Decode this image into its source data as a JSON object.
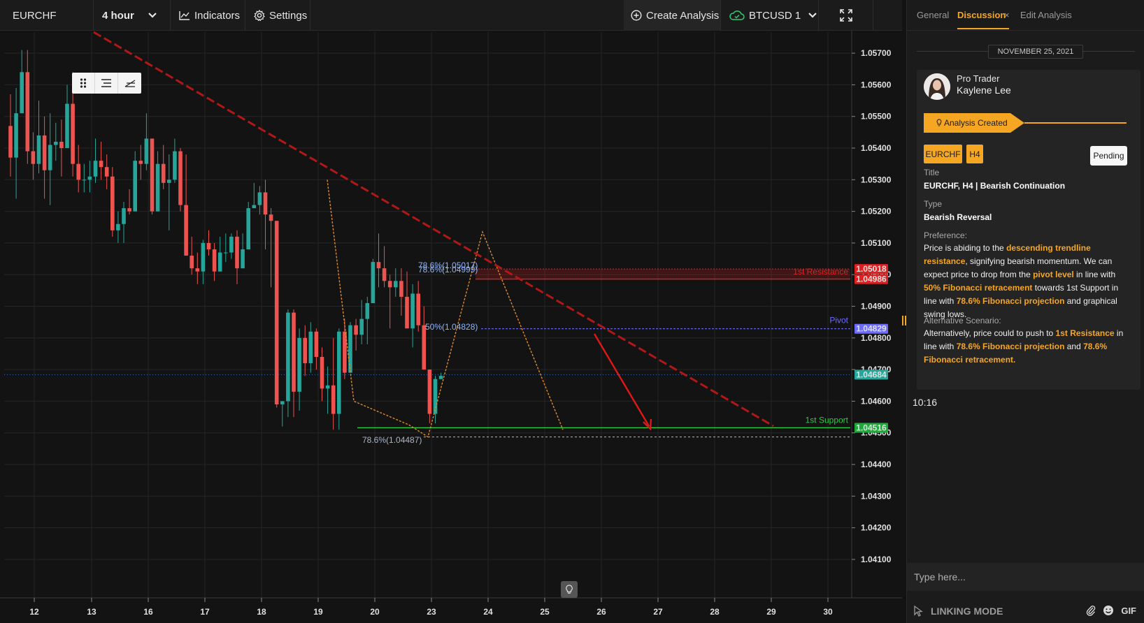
{
  "toolbar": {
    "symbol": "EURCHF",
    "interval": "4 hour",
    "indicators_label": "Indicators",
    "settings_label": "Settings",
    "create_analysis_label": "Create Analysis",
    "second_symbol": "BTCUSD 1",
    "icons": [
      "chevron-down-icon",
      "line-chart-icon",
      "gear-icon",
      "plus-circle-icon",
      "cloud-icon",
      "fullscreen-icon"
    ]
  },
  "chart_data": {
    "type": "candlestick",
    "symbol": "EURCHF",
    "interval": "4 hour",
    "y_ticks": [
      "1.05700",
      "1.05600",
      "1.05500",
      "1.05400",
      "1.05300",
      "1.05200",
      "1.05100",
      "1.05000",
      "1.04900",
      "1.04800",
      "1.04700",
      "1.04600",
      "1.04500",
      "1.04400",
      "1.04300",
      "1.04200",
      "1.04100"
    ],
    "ylim": [
      1.0408,
      1.0574
    ],
    "x_ticks": [
      "12",
      "13",
      "16",
      "17",
      "18",
      "19",
      "20",
      "23",
      "24",
      "25",
      "26",
      "27",
      "28",
      "29",
      "30"
    ],
    "grid": true,
    "candles": [
      [
        1.0547,
        1.0557,
        1.0531,
        1.0537
      ],
      [
        1.0537,
        1.0559,
        1.0524,
        1.0551
      ],
      [
        1.0551,
        1.0571,
        1.0551,
        1.0564
      ],
      [
        1.0564,
        1.0571,
        1.0535,
        1.0539
      ],
      [
        1.0539,
        1.0545,
        1.053,
        1.0535
      ],
      [
        1.0535,
        1.0555,
        1.0532,
        1.0544
      ],
      [
        1.0544,
        1.055,
        1.0524,
        1.0533
      ],
      [
        1.0533,
        1.0551,
        1.0522,
        1.0541
      ],
      [
        1.0541,
        1.0548,
        1.0536,
        1.0542
      ],
      [
        1.0542,
        1.0549,
        1.0531,
        1.054
      ],
      [
        1.054,
        1.056,
        1.054,
        1.0554
      ],
      [
        1.0554,
        1.0564,
        1.0531,
        1.0535
      ],
      [
        1.0535,
        1.0541,
        1.0526,
        1.053
      ],
      [
        1.053,
        1.0535,
        1.0526,
        1.053
      ],
      [
        1.053,
        1.0536,
        1.0526,
        1.0531
      ],
      [
        1.0531,
        1.0543,
        1.0529,
        1.0536
      ],
      [
        1.0536,
        1.0542,
        1.053,
        1.0534
      ],
      [
        1.0534,
        1.0538,
        1.0527,
        1.0531
      ],
      [
        1.0531,
        1.0534,
        1.0512,
        1.0514
      ],
      [
        1.0514,
        1.052,
        1.051,
        1.0516
      ],
      [
        1.0516,
        1.0523,
        1.051,
        1.0521
      ],
      [
        1.0521,
        1.0527,
        1.0519,
        1.052
      ],
      [
        1.052,
        1.0539,
        1.052,
        1.0536
      ],
      [
        1.0536,
        1.0541,
        1.053,
        1.0535
      ],
      [
        1.0535,
        1.0551,
        1.0533,
        1.0543
      ],
      [
        1.0543,
        1.0543,
        1.0519,
        1.052
      ],
      [
        1.052,
        1.0539,
        1.052,
        1.0535
      ],
      [
        1.0535,
        1.0541,
        1.0527,
        1.0529
      ],
      [
        1.0529,
        1.0538,
        1.0514,
        1.053
      ],
      [
        1.053,
        1.0543,
        1.0529,
        1.0539
      ],
      [
        1.0539,
        1.054,
        1.052,
        1.0522
      ],
      [
        1.0522,
        1.0538,
        1.0506,
        1.0506
      ],
      [
        1.0506,
        1.0512,
        1.05,
        1.0502
      ],
      [
        1.0502,
        1.0507,
        1.0497,
        1.0501
      ],
      [
        1.0501,
        1.0511,
        1.0497,
        1.051
      ],
      [
        1.051,
        1.0514,
        1.0506,
        1.0508
      ],
      [
        1.0508,
        1.051,
        1.0498,
        1.0501
      ],
      [
        1.0501,
        1.0512,
        1.0501,
        1.0507
      ],
      [
        1.0507,
        1.0513,
        1.0504,
        1.0507
      ],
      [
        1.0507,
        1.0513,
        1.0505,
        1.0512
      ],
      [
        1.0512,
        1.0514,
        1.0497,
        1.0502
      ],
      [
        1.0502,
        1.0513,
        1.0502,
        1.0508
      ],
      [
        1.0508,
        1.0523,
        1.0508,
        1.0521
      ],
      [
        1.0521,
        1.0529,
        1.0521,
        1.0522
      ],
      [
        1.0522,
        1.0528,
        1.0519,
        1.0526
      ],
      [
        1.0526,
        1.053,
        1.0508,
        1.0519
      ],
      [
        1.0519,
        1.0521,
        1.0496,
        1.0517
      ],
      [
        1.0517,
        1.0517,
        1.0458,
        1.0459
      ],
      [
        1.0459,
        1.046,
        1.0452,
        1.046
      ],
      [
        1.046,
        1.0489,
        1.0455,
        1.0488
      ],
      [
        1.0488,
        1.0489,
        1.0455,
        1.0463
      ],
      [
        1.0463,
        1.0483,
        1.0457,
        1.048
      ],
      [
        1.048,
        1.0484,
        1.0468,
        1.0472
      ],
      [
        1.0472,
        1.0485,
        1.0469,
        1.0482
      ],
      [
        1.0482,
        1.0483,
        1.047,
        1.0474
      ],
      [
        1.0474,
        1.0477,
        1.046,
        1.0464
      ],
      [
        1.0464,
        1.0471,
        1.0456,
        1.0465
      ],
      [
        1.0465,
        1.048,
        1.0451,
        1.0456
      ],
      [
        1.0456,
        1.0483,
        1.0451,
        1.0482
      ],
      [
        1.0482,
        1.0486,
        1.0467,
        1.0469
      ],
      [
        1.0469,
        1.0485,
        1.0469,
        1.0484
      ],
      [
        1.0484,
        1.0486,
        1.0476,
        1.0481
      ],
      [
        1.0481,
        1.0492,
        1.0478,
        1.0486
      ],
      [
        1.0486,
        1.0493,
        1.0478,
        1.0491
      ],
      [
        1.0491,
        1.0505,
        1.0491,
        1.0504
      ],
      [
        1.0504,
        1.0513,
        1.0496,
        1.0502
      ],
      [
        1.0502,
        1.0509,
        1.0496,
        1.0498
      ],
      [
        1.0498,
        1.05,
        1.0483,
        1.0496
      ],
      [
        1.0496,
        1.0502,
        1.0493,
        1.0498
      ],
      [
        1.0498,
        1.0502,
        1.0487,
        1.0493
      ],
      [
        1.0493,
        1.0501,
        1.0483,
        1.0483
      ],
      [
        1.0483,
        1.0497,
        1.0477,
        1.0494
      ],
      [
        1.0494,
        1.0498,
        1.0482,
        1.0484
      ],
      [
        1.0484,
        1.049,
        1.047,
        1.047
      ],
      [
        1.047,
        1.047,
        1.0453,
        1.0456
      ],
      [
        1.0456,
        1.0468,
        1.0453,
        1.0467
      ],
      [
        1.0467,
        1.0469,
        1.0467,
        1.0468
      ]
    ],
    "overlays": {
      "resistance": {
        "label": "1st Resistance",
        "upper": 1.05018,
        "lower": 1.04986
      },
      "pivot": {
        "label": "Pivot",
        "value": 1.04829
      },
      "support": {
        "label": "1st Support",
        "value": 1.04516
      },
      "low_level": 1.04487,
      "current": 1.04684
    },
    "fib_labels": [
      "78.6%(1.05017)",
      "78.6%(1.04999)",
      "50%(1.04828)",
      "78.6%(1.04487)"
    ],
    "price_badges": [
      "1.05018",
      "1.04986",
      "1.04829",
      "1.04684",
      "1.04516"
    ]
  },
  "panel": {
    "tabs": {
      "general": "General",
      "discussion": "Discussion",
      "close": "×",
      "edit": "Edit Analysis"
    },
    "date": "NOVEMBER 25, 2021",
    "trader_role": "Pro Trader",
    "trader_name": "Kaylene Lee",
    "status": "Analysis Created",
    "chip_symbol": "EURCHF",
    "chip_tf": "H4",
    "pending": "Pending",
    "title_label": "Title",
    "title_value": "EURCHF, H4 | Bearish Continuation",
    "type_label": "Type",
    "type_value": "Bearish Reversal",
    "pref_label": "Preference:",
    "pref": {
      "t1": "Price is abiding to the ",
      "h1": "descending trendline resistance",
      "t2": ", signifying bearish momentum. We can expect price to drop from the ",
      "h2": "pivot level",
      "t3": " in line with ",
      "h3": "50% Fibonacci retracement",
      "t4": " towards 1st Support in line with ",
      "h4": "78.6% Fibonacci projection",
      "t5": " and graphical swing lows."
    },
    "alt_label": "Alternative Scenario:",
    "alt": {
      "t1": "Alternatively, price could to push to ",
      "h1": "1st Resistance",
      "t2": " in line with ",
      "h2": "78.6% Fibonacci projection",
      "t3": " and ",
      "h3": "78.6% Fibonacci retracement."
    },
    "time": "10:16",
    "input_placeholder": "Type here...",
    "linking_mode": "LINKING MODE",
    "gif_label": "GIF"
  },
  "colors": {
    "bull": "#26a69a",
    "bear": "#ef5350",
    "accent": "#f5a623",
    "resistance": "#e02020",
    "pivot": "#6b6bff",
    "support": "#2ecc40"
  }
}
